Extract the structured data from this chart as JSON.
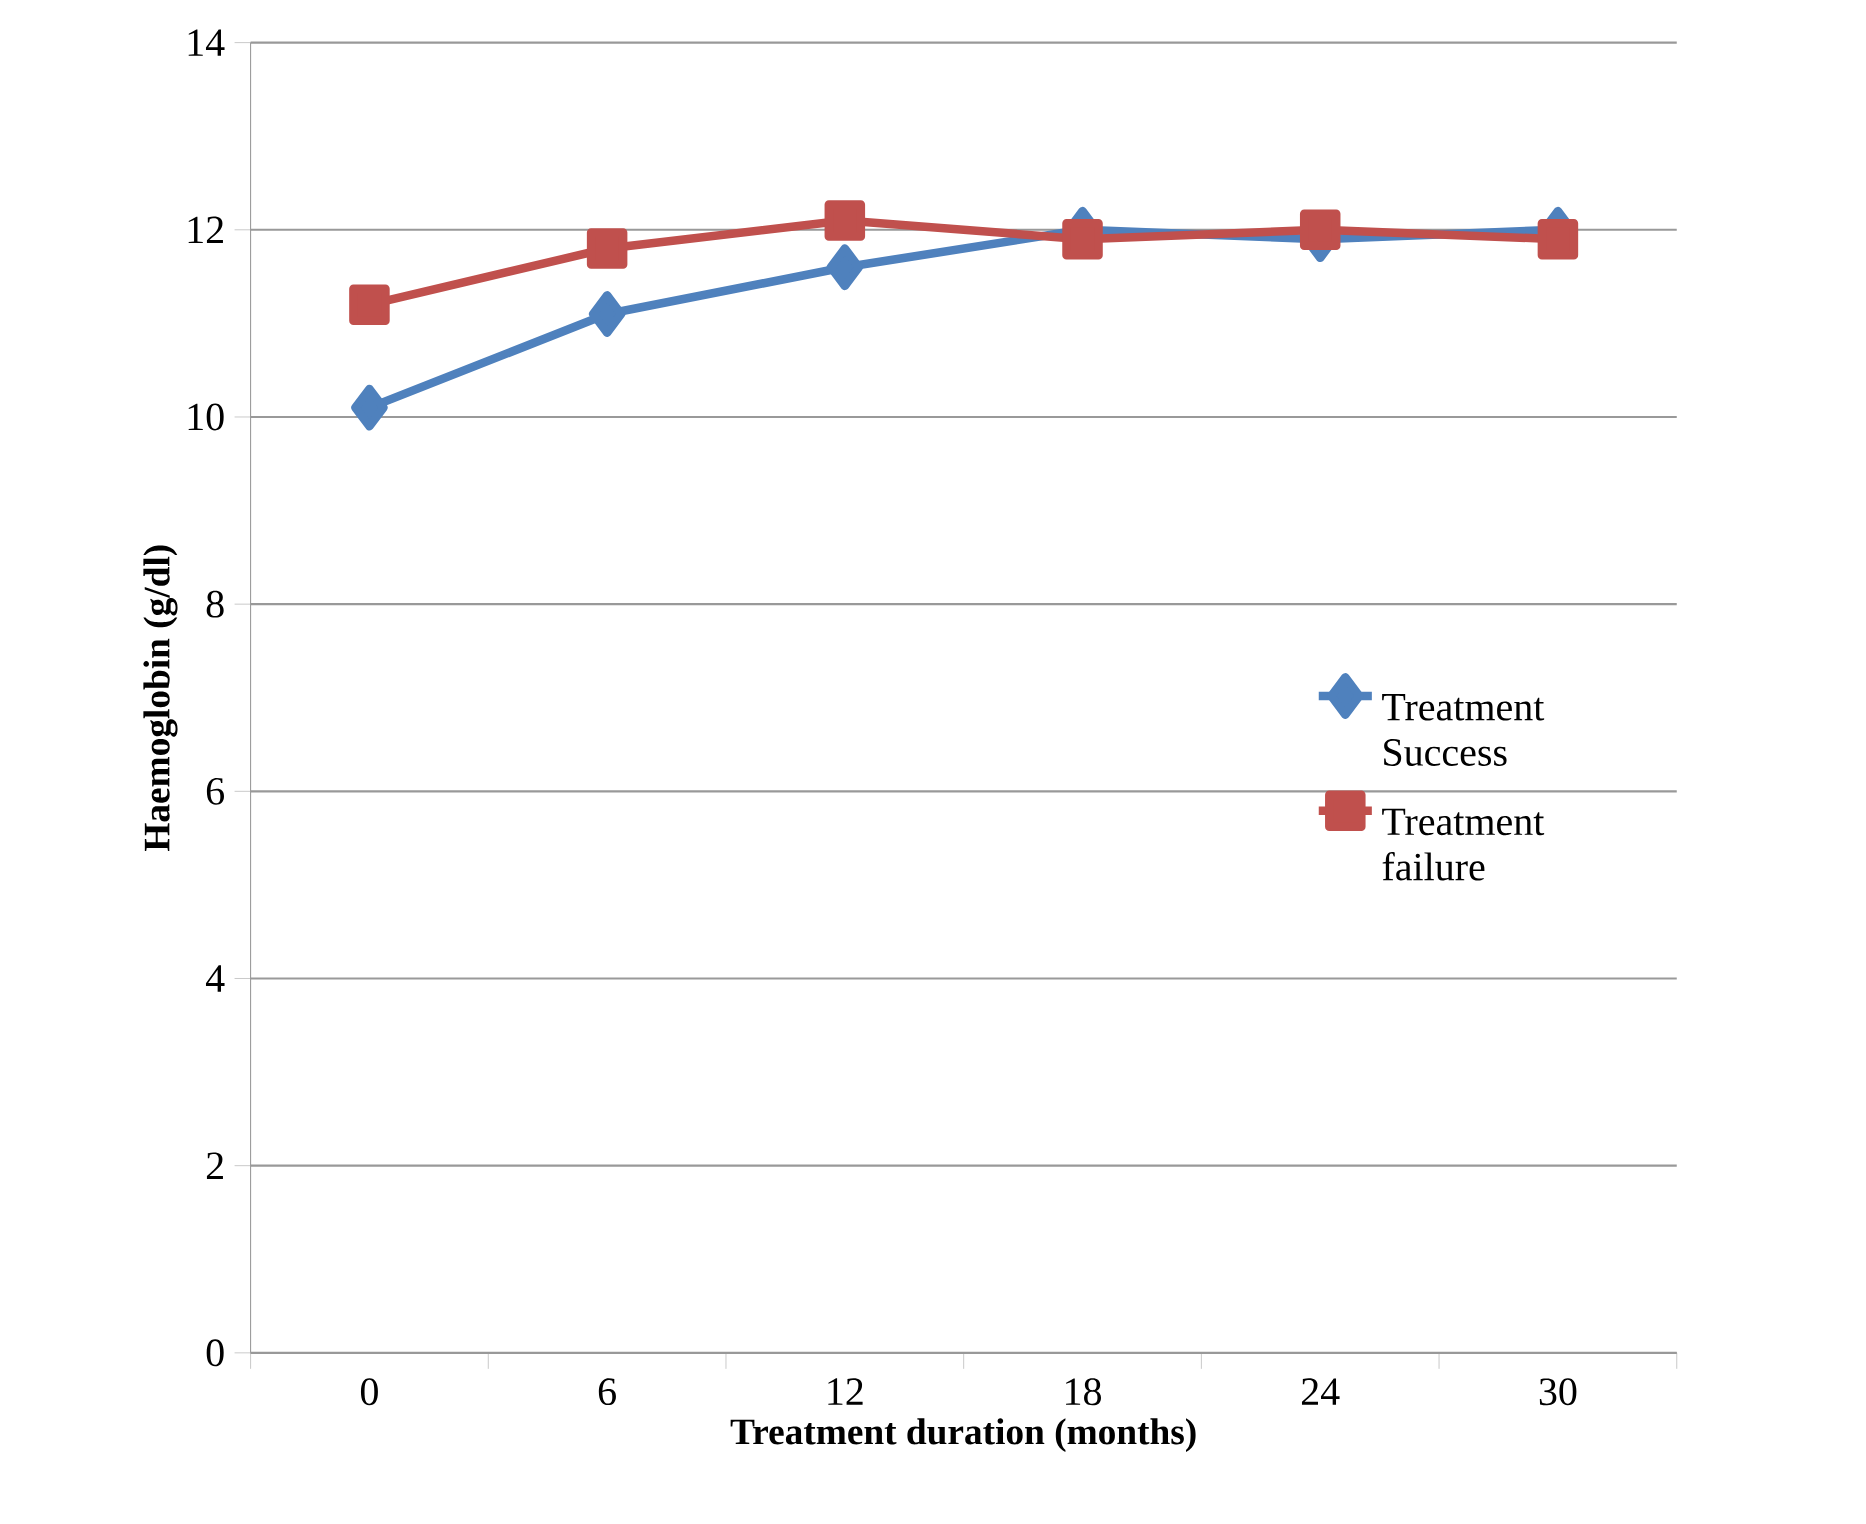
{
  "chart_data": {
    "type": "line",
    "xlabel": "Treatment duration (months)",
    "ylabel": "Haemoglobin (g/dl)",
    "categories": [
      "0",
      "6",
      "12",
      "18",
      "24",
      "30"
    ],
    "series": [
      {
        "name": "Treatment Success",
        "color": "#4f81bd",
        "marker": "diamond",
        "values": [
          10.1,
          11.1,
          11.6,
          12.0,
          11.9,
          12.0
        ]
      },
      {
        "name": "Treatment failure",
        "color": "#c0504d",
        "marker": "square",
        "values": [
          11.2,
          11.8,
          12.1,
          11.9,
          12.0,
          11.9
        ]
      }
    ],
    "ylim": [
      0,
      14
    ],
    "yticks": [
      0,
      2,
      4,
      6,
      8,
      10,
      12,
      14
    ],
    "grid": "y",
    "legend": "right"
  }
}
